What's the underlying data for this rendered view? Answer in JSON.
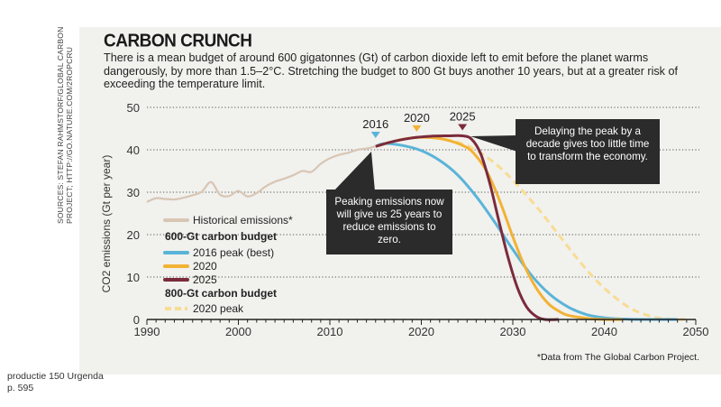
{
  "sources_note": "SOURCES: STEFAN RAHMSTORF/GLOBAL CARBON PROJECT; HTTP://GO.NATURE.COM/2ROPCRU",
  "footer": {
    "line1": "productie 150 Urgenda",
    "line2": "p. 595"
  },
  "colors": {
    "historical": "#d8c6b4",
    "peak_2016": "#5ab4d8",
    "peak_2020": "#f2b234",
    "peak_2025": "#7a2b3c",
    "peak_2020_800": "#f8dc92",
    "callout_bg": "#2b2b2b",
    "card_bg": "#f1f1ee"
  },
  "chart_data": {
    "type": "line",
    "title": "CARBON CRUNCH",
    "subtitle": "There is a mean budget of around 600 gigatonnes (Gt) of carbon dioxide left to emit before the planet warms dangerously, by more than 1.5–2°C. Stretching the budget to 800 Gt buys another 10 years, but at a greater risk of exceeding the temperature limit.",
    "xlabel": "",
    "ylabel": "CO2 emissions (Gt per year)",
    "xlim": [
      1990,
      2050
    ],
    "ylim": [
      0,
      50
    ],
    "xticks": [
      1990,
      2000,
      2010,
      2020,
      2030,
      2040,
      2050
    ],
    "yticks": [
      0,
      10,
      20,
      30,
      40,
      50
    ],
    "grid": "horizontal dotted",
    "legend_position": "left, inside",
    "legend": {
      "historical": "Historical emissions*",
      "group1": "600-Gt carbon budget",
      "s2016": "2016 peak (best)",
      "s2020": "2020",
      "s2025": "2025",
      "group2": "800-Gt carbon budget",
      "s2020_800": "2020 peak"
    },
    "peak_markers": [
      {
        "label": "2016",
        "x": 2015,
        "y": 41.5,
        "color": "#5ab4d8"
      },
      {
        "label": "2020",
        "x": 2019.5,
        "y": 43,
        "color": "#f2b234"
      },
      {
        "label": "2025",
        "x": 2024.5,
        "y": 43.3,
        "color": "#7a2b3c"
      }
    ],
    "annotations": {
      "callout1": "Peaking emissions now will give us 25 years to reduce emissions to zero.",
      "callout2": "Delaying the peak by a decade gives too little time to transform the economy.",
      "footnote": "*Data from The Global Carbon Project."
    },
    "series": [
      {
        "key": "historical",
        "name": "Historical emissions*",
        "style": "solid",
        "x": [
          1990,
          1991,
          1992,
          1993,
          1994,
          1995,
          1996,
          1997,
          1998,
          1999,
          2000,
          2001,
          2002,
          2003,
          2004,
          2005,
          2006,
          2007,
          2008,
          2009,
          2010,
          2011,
          2012,
          2013,
          2014,
          2015
        ],
        "y": [
          27.7,
          28.6,
          28.4,
          28.3,
          28.7,
          29.3,
          30.1,
          32.4,
          29.4,
          29.1,
          30.3,
          29.0,
          29.8,
          31.4,
          32.5,
          33.2,
          34.0,
          35.0,
          34.8,
          36.7,
          38.0,
          38.8,
          39.3,
          40.0,
          40.3,
          40.8
        ]
      },
      {
        "key": "peak_2016",
        "name": "2016 peak (best)",
        "style": "solid",
        "x": [
          2015,
          2016,
          2018,
          2020,
          2022,
          2024,
          2026,
          2028,
          2030,
          2032,
          2034,
          2036,
          2038,
          2040,
          2042,
          2044,
          2048
        ],
        "y": [
          40.8,
          41.5,
          41.0,
          39.8,
          37.5,
          34.0,
          29.0,
          23.0,
          16.5,
          10.5,
          6.0,
          3.0,
          1.2,
          0.4,
          0.1,
          0.0,
          0.0
        ]
      },
      {
        "key": "peak_2020",
        "name": "2020",
        "style": "solid",
        "x": [
          2015,
          2017,
          2019,
          2021,
          2023,
          2025,
          2026,
          2027,
          2028,
          2029,
          2030,
          2031,
          2032,
          2033,
          2034,
          2035,
          2036,
          2038,
          2040,
          2042
        ],
        "y": [
          40.8,
          42.0,
          42.8,
          42.9,
          42.2,
          40.5,
          38.5,
          35.5,
          31.0,
          25.5,
          19.5,
          14.0,
          9.5,
          6.0,
          3.5,
          2.0,
          1.0,
          0.3,
          0.0,
          0.0
        ]
      },
      {
        "key": "peak_2025",
        "name": "2025",
        "style": "solid",
        "x": [
          2015,
          2017,
          2019,
          2021,
          2023,
          2024.5,
          2025.5,
          2026.5,
          2027.5,
          2028.5,
          2029.5,
          2030.5,
          2031.5,
          2032.5,
          2033.5,
          2035
        ],
        "y": [
          40.8,
          42.0,
          42.8,
          43.2,
          43.3,
          43.3,
          42.5,
          39.0,
          32.0,
          23.0,
          14.5,
          7.5,
          3.0,
          0.8,
          0.0,
          0.0
        ]
      },
      {
        "key": "peak_2020_800",
        "name": "2020 peak",
        "style": "dashed",
        "x": [
          2015,
          2017,
          2019,
          2021,
          2023,
          2025,
          2027,
          2029,
          2031,
          2033,
          2035,
          2037,
          2039,
          2041,
          2043,
          2045,
          2047,
          2049
        ],
        "y": [
          40.8,
          42.0,
          42.8,
          42.9,
          42.3,
          41.0,
          38.5,
          35.0,
          30.5,
          25.5,
          20.0,
          14.5,
          9.5,
          5.5,
          2.5,
          0.8,
          0.1,
          0.0
        ]
      }
    ]
  }
}
